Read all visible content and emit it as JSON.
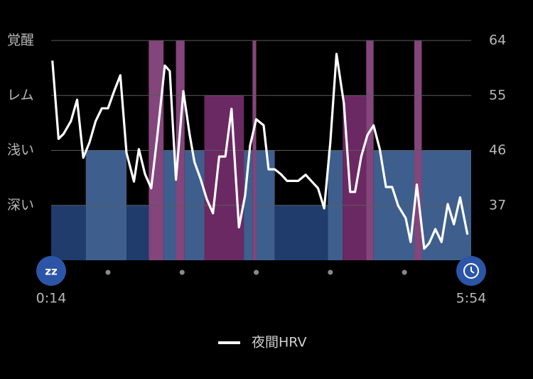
{
  "chart_data": {
    "type": "hypnogram",
    "ylim": [
      0,
      4
    ],
    "yticks": [
      {
        "value": 1,
        "label": "深い"
      },
      {
        "value": 2,
        "label": "浅い"
      },
      {
        "value": 3,
        "label": "レム"
      },
      {
        "value": 4,
        "label": "覚醒"
      }
    ],
    "y2lim": [
      28,
      64
    ],
    "y2ticks": [
      37,
      46,
      55,
      64
    ],
    "xlim": [
      0,
      340
    ],
    "xticks": [
      {
        "value": 0,
        "label": "0:14"
      },
      {
        "value": 340,
        "label": "5:54"
      }
    ],
    "minor_xticks": [
      46,
      106,
      166,
      226,
      286
    ],
    "grid": true,
    "stage_colors": [
      "#1f3c6d",
      "#3e5f8d",
      "#6b2963",
      "#83457b"
    ],
    "stages": [
      {
        "level": 1,
        "start": 0,
        "end": 28
      },
      {
        "level": 2,
        "start": 28,
        "end": 61
      },
      {
        "level": 1,
        "start": 61,
        "end": 79
      },
      {
        "level": 4,
        "start": 79,
        "end": 91
      },
      {
        "level": 2,
        "start": 91,
        "end": 101
      },
      {
        "level": 4,
        "start": 101,
        "end": 108
      },
      {
        "level": 2,
        "start": 108,
        "end": 124
      },
      {
        "level": 3,
        "start": 124,
        "end": 156
      },
      {
        "level": 2,
        "start": 156,
        "end": 163
      },
      {
        "level": 4,
        "start": 163,
        "end": 166
      },
      {
        "level": 2,
        "start": 166,
        "end": 181
      },
      {
        "level": 1,
        "start": 181,
        "end": 224
      },
      {
        "level": 2,
        "start": 224,
        "end": 236
      },
      {
        "level": 3,
        "start": 236,
        "end": 255
      },
      {
        "level": 4,
        "start": 255,
        "end": 261
      },
      {
        "level": 2,
        "start": 261,
        "end": 294
      },
      {
        "level": 4,
        "start": 294,
        "end": 300
      },
      {
        "level": 2,
        "start": 300,
        "end": 340
      }
    ],
    "series": [
      {
        "name": "夜間HRV",
        "color": "#ffffff",
        "axis": "y2",
        "x": [
          1,
          6,
          10,
          16,
          21,
          26,
          31,
          36,
          41,
          46,
          51,
          56,
          61,
          67,
          71,
          76,
          81,
          86,
          92,
          96,
          101,
          107,
          112,
          116,
          121,
          126,
          131,
          136,
          141,
          146,
          152,
          157,
          161,
          166,
          172,
          176,
          181,
          186,
          191,
          200,
          206,
          211,
          216,
          221,
          226,
          231,
          237,
          242,
          246,
          251,
          256,
          261,
          266,
          271,
          276,
          281,
          287,
          291,
          296,
          302,
          306,
          311,
          316,
          321,
          326,
          331,
          337
        ],
        "values": [
          60.7,
          47.9,
          48.7,
          50.8,
          54.3,
          44.8,
          47.3,
          50.8,
          52.9,
          52.9,
          55.7,
          58.3,
          45.6,
          40.9,
          46.2,
          42.1,
          39.8,
          48.5,
          59.9,
          59.0,
          41.2,
          55.7,
          48.7,
          44.1,
          41.3,
          38.0,
          35.7,
          45.0,
          45.0,
          52.8,
          33.4,
          38.6,
          46.8,
          51.1,
          50.1,
          42.9,
          42.9,
          42.1,
          41.0,
          41.0,
          42.0,
          40.9,
          39.8,
          36.5,
          47.3,
          61.8,
          53.6,
          39.2,
          39.2,
          45.0,
          48.5,
          50.1,
          46.2,
          40.0,
          40.0,
          36.9,
          34.9,
          31.0,
          40.4,
          29.9,
          30.8,
          33.1,
          31.0,
          37.2,
          33.9,
          38.3,
          32.2
        ]
      }
    ]
  }
}
